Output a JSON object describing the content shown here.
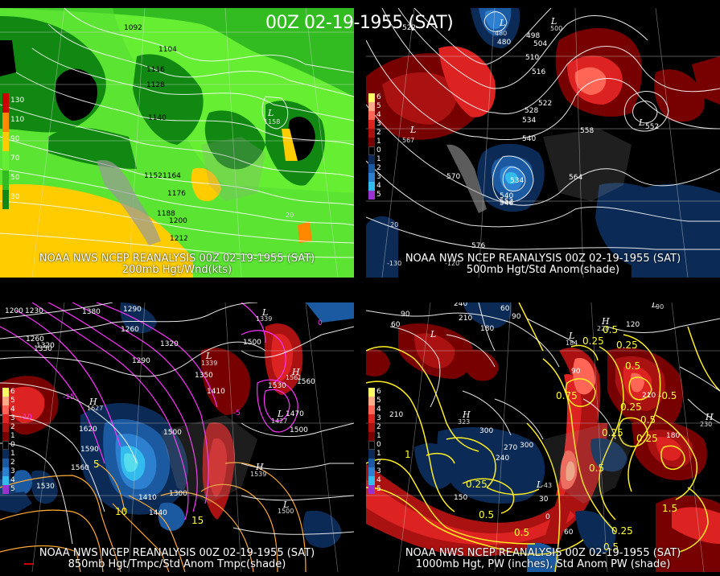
{
  "title": "00Z 02-19-1955 (SAT)",
  "panels": [
    {
      "caption1": "NOAA NWS NCEP REANALYSIS 00Z 02-19-1955 (SAT)",
      "caption2": "200mb Hgt/Wnd(kts)",
      "colorbar": [
        {
          "label": "130",
          "color": "#cc0000"
        },
        {
          "label": "110",
          "color": "#ff8800"
        },
        {
          "label": "90",
          "color": "#ffcc00"
        },
        {
          "label": "70",
          "color": "#66ee33"
        },
        {
          "label": "50",
          "color": "#33bb22"
        },
        {
          "label": "30",
          "color": "#118811"
        }
      ],
      "contour_labels": [
        "1092",
        "1104",
        "1116",
        "1128",
        "1140",
        "1152",
        "1164",
        "1176",
        "1188",
        "1200",
        "1212"
      ],
      "centers": [
        {
          "label": "L",
          "value": "1158"
        }
      ]
    },
    {
      "caption1": "NOAA NWS NCEP REANALYSIS 00Z 02-19-1955 (SAT)",
      "caption2": "500mb Hgt/Std Anom(shade)",
      "colorbar": [
        {
          "label": "6",
          "color": "#ffff66"
        },
        {
          "label": "5",
          "color": "#ffaa88"
        },
        {
          "label": "4",
          "color": "#ff6655"
        },
        {
          "label": "3",
          "color": "#dd2222"
        },
        {
          "label": "2",
          "color": "#aa1111"
        },
        {
          "label": "1",
          "color": "#770000"
        },
        {
          "label": "0",
          "color": "#000000"
        },
        {
          "label": "1",
          "color": "#0b2a55"
        },
        {
          "label": "2",
          "color": "#1b5aa0"
        },
        {
          "label": "3",
          "color": "#2d7fd0"
        },
        {
          "label": "4",
          "color": "#33bbee"
        },
        {
          "label": "5",
          "color": "#9933cc"
        }
      ],
      "contour_labels": [
        "522",
        "480",
        "498",
        "504",
        "510",
        "516",
        "522",
        "528",
        "534",
        "540",
        "558",
        "552",
        "567",
        "570",
        "534",
        "540",
        "546",
        "552",
        "564",
        "576",
        "20",
        "-130",
        "-120"
      ],
      "centers": [
        {
          "label": "L",
          "value": "480"
        },
        {
          "label": "L",
          "value": "500"
        },
        {
          "label": "L",
          "value": "567"
        },
        {
          "label": "L",
          "value": "552"
        }
      ]
    },
    {
      "caption1": "NOAA NWS NCEP REANALYSIS 00Z 02-19-1955 (SAT)",
      "caption2": "850mb Hgt/Tmpc/Std Anom Tmpc(shade)",
      "colorbar": [
        {
          "label": "6",
          "color": "#ffff66"
        },
        {
          "label": "5",
          "color": "#ffaa88"
        },
        {
          "label": "4",
          "color": "#ff6655"
        },
        {
          "label": "3",
          "color": "#dd2222"
        },
        {
          "label": "2",
          "color": "#aa1111"
        },
        {
          "label": "1",
          "color": "#770000"
        },
        {
          "label": "0",
          "color": "#000000"
        },
        {
          "label": "1",
          "color": "#0b2a55"
        },
        {
          "label": "2",
          "color": "#1b5aa0"
        },
        {
          "label": "3",
          "color": "#2d7fd0"
        },
        {
          "label": "4",
          "color": "#33bbee"
        },
        {
          "label": "5",
          "color": "#9933cc"
        }
      ],
      "contour_labels": [
        "1200",
        "1230",
        "1380",
        "1260",
        "1290",
        "1320",
        "1350",
        "1500",
        "1410",
        "1560",
        "1530",
        "1470",
        "1620",
        "1590",
        "1560",
        "1530",
        "1500",
        "1410",
        "1440",
        "1300",
        "-15",
        "-10",
        "-5",
        "15",
        "10",
        "5",
        "0"
      ],
      "centers": [
        {
          "label": "L",
          "value": "1339"
        },
        {
          "label": "L",
          "value": "1339"
        },
        {
          "label": "H",
          "value": "1627"
        },
        {
          "label": "H",
          "value": "1561"
        },
        {
          "label": "L",
          "value": "1427"
        },
        {
          "label": "H",
          "value": "1539"
        },
        {
          "label": "L",
          "value": "1500"
        }
      ]
    },
    {
      "caption1": "NOAA NWS NCEP REANALYSIS 00Z 02-19-1955 (SAT)",
      "caption2": "1000mb Hgt, PW (inches), Std Anom PW (shade)",
      "colorbar": [
        {
          "label": "6",
          "color": "#ffff66"
        },
        {
          "label": "5",
          "color": "#ffaa88"
        },
        {
          "label": "4",
          "color": "#ff6655"
        },
        {
          "label": "3",
          "color": "#dd2222"
        },
        {
          "label": "2",
          "color": "#aa1111"
        },
        {
          "label": "1",
          "color": "#770000"
        },
        {
          "label": "0",
          "color": "#000000"
        },
        {
          "label": "1",
          "color": "#0b2a55"
        },
        {
          "label": "2",
          "color": "#1b5aa0"
        },
        {
          "label": "3",
          "color": "#2d7fd0"
        },
        {
          "label": "4",
          "color": "#33bbee"
        },
        {
          "label": "5",
          "color": "#9933cc"
        }
      ],
      "contour_labels": [
        "90",
        "60",
        "240",
        "210",
        "180",
        "60",
        "90",
        "120",
        "0.25",
        "0.5",
        "0.25",
        "0.5",
        "210",
        "-0.5",
        "0.25",
        "0.5",
        "0.25",
        "180",
        "210",
        "300",
        "270",
        "240",
        "150",
        "0.25",
        "0.5",
        "30",
        "0",
        "90",
        "60",
        "0.5",
        "0.25",
        "1.5",
        "0.75",
        "1",
        "0.5"
      ],
      "centers": [
        {
          "label": "L",
          "value": "90"
        },
        {
          "label": "H",
          "value": "220"
        },
        {
          "label": "L",
          "value": "184"
        },
        {
          "label": "H",
          "value": "323"
        },
        {
          "label": "H",
          "value": "230"
        },
        {
          "label": "L",
          "value": "-43"
        }
      ]
    }
  ]
}
